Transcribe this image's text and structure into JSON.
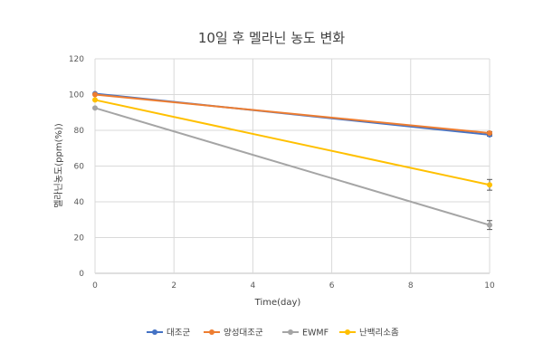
{
  "chart_data": {
    "type": "line",
    "title": "10일 후 멜라닌 농도 변화",
    "xlabel": "Time(day)",
    "ylabel": "멜라닌농도(ppm(%))",
    "xlim": [
      0,
      10
    ],
    "ylim": [
      0,
      120
    ],
    "x_ticks": [
      "0",
      "2",
      "4",
      "6",
      "8",
      "10"
    ],
    "y_ticks": [
      "0",
      "20",
      "40",
      "60",
      "80",
      "100",
      "120"
    ],
    "grid": true,
    "legend_position": "bottom",
    "series": [
      {
        "name": "대조군",
        "color": "#4472C4",
        "points": [
          {
            "x": 0,
            "y": 100.5
          },
          {
            "x": 10,
            "y": 77.5
          }
        ],
        "error": [
          0,
          0.8
        ]
      },
      {
        "name": "양성대조군",
        "color": "#ED7D31",
        "points": [
          {
            "x": 0,
            "y": 100
          },
          {
            "x": 10,
            "y": 78.5
          }
        ],
        "error": [
          0,
          0.8
        ]
      },
      {
        "name": "EWMF",
        "color": "#A5A5A5",
        "points": [
          {
            "x": 0,
            "y": 92.5
          },
          {
            "x": 10,
            "y": 27
          }
        ],
        "error": [
          0,
          2.5
        ]
      },
      {
        "name": "난백리소좀",
        "color": "#FFC000",
        "points": [
          {
            "x": 0,
            "y": 97
          },
          {
            "x": 10,
            "y": 49.5
          }
        ],
        "error": [
          0,
          3
        ]
      }
    ]
  }
}
